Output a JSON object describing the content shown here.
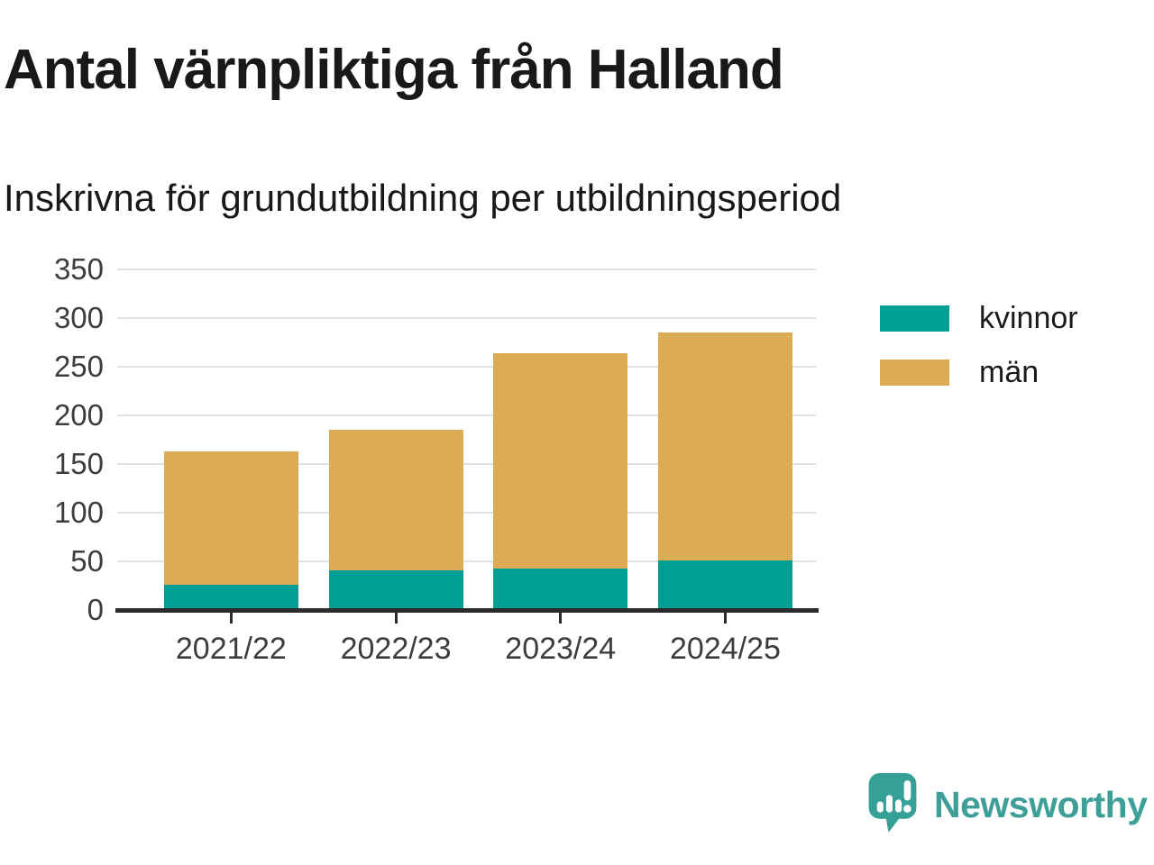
{
  "chart_data": {
    "type": "bar",
    "stacked": true,
    "title": "Antal värnpliktiga från Halland",
    "subtitle": "Inskrivna för grundutbildning per utbildningsperiod",
    "categories": [
      "2021/22",
      "2022/23",
      "2023/24",
      "2024/25"
    ],
    "series": [
      {
        "name": "kvinnor",
        "color": "#009E93",
        "values": [
          26,
          41,
          43,
          51
        ]
      },
      {
        "name": "män",
        "color": "#DCAC55",
        "values": [
          137,
          144,
          221,
          234
        ]
      }
    ],
    "totals": [
      163,
      185,
      264,
      285
    ],
    "ylim": [
      0,
      350
    ],
    "ytick_step": 50,
    "yticks": [
      0,
      50,
      100,
      150,
      200,
      250,
      300,
      350
    ],
    "grid": true,
    "legend_position": "right"
  },
  "footer": {
    "brand": "Newsworthy"
  },
  "colors": {
    "background": "#ffffff",
    "title_text": "#191919",
    "label_text": "#3d3d3d",
    "axis": "#2b2b2b",
    "grid": "#e0e0e0",
    "logo_mark": "#35A096",
    "logo_text": "#3d9f97"
  }
}
